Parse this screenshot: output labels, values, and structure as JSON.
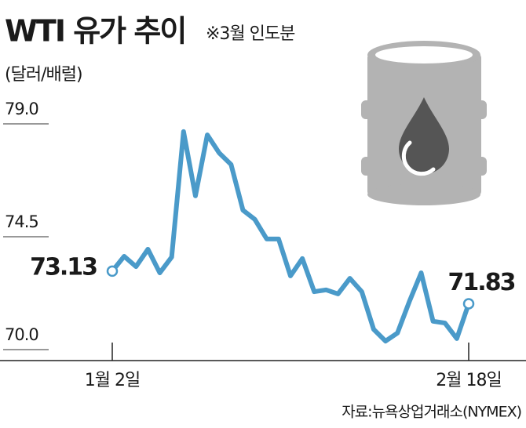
{
  "chart_data": {
    "type": "line",
    "title": "WTI 유가 추이",
    "subtitle": "※3월 인도분",
    "y_label": "(달러/배럴)",
    "source": "자료:뉴욕상업거래소(NYMEX)",
    "categories": [
      "1월 2일",
      null,
      null,
      null,
      null,
      null,
      null,
      null,
      null,
      null,
      null,
      null,
      null,
      null,
      null,
      null,
      null,
      null,
      null,
      null,
      null,
      null,
      null,
      null,
      null,
      null,
      null,
      null,
      null,
      null,
      "2월 18일"
    ],
    "values": [
      73.13,
      73.72,
      73.31,
      74.0,
      73.06,
      73.69,
      78.69,
      76.13,
      78.56,
      77.84,
      77.38,
      75.56,
      75.19,
      74.41,
      74.41,
      72.94,
      73.63,
      72.31,
      72.38,
      72.22,
      72.84,
      72.31,
      70.81,
      70.34,
      70.66,
      71.91,
      73.06,
      71.13,
      71.06,
      70.44,
      71.83
    ],
    "color": "#4a9ac9",
    "ylim": [
      70,
      79
    ],
    "yticks": [
      {
        "value": 70,
        "label": "70.0"
      },
      74.5,
      {
        "value": 79,
        "label": "79.0"
      }
    ],
    "grid": true
  }
}
